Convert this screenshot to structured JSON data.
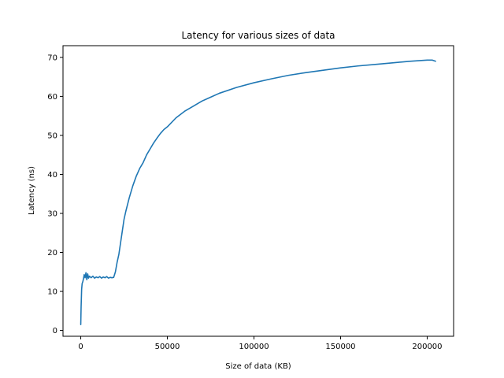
{
  "chart_data": {
    "type": "line",
    "title": "Latency for various sizes of data",
    "xlabel": "Size of data (KB)",
    "ylabel": "Latency (ns)",
    "xlim": [
      -10250,
      215250
    ],
    "ylim": [
      -1.5,
      73.0
    ],
    "xticks": [
      0,
      50000,
      100000,
      150000,
      200000
    ],
    "yticks": [
      0,
      10,
      20,
      30,
      40,
      50,
      60,
      70
    ],
    "grid": false,
    "legend": "none",
    "series": [
      {
        "color": "#1f77b4",
        "x": [
          0,
          200,
          500,
          800,
          1200,
          1600,
          2000,
          2500,
          3000,
          3500,
          4000,
          4500,
          5000,
          6000,
          7000,
          8000,
          9000,
          10000,
          11000,
          12000,
          13000,
          14000,
          15000,
          16000,
          17000,
          18000,
          19000,
          19500,
          20000,
          21000,
          22000,
          23000,
          24000,
          25000,
          26000,
          28000,
          30000,
          32000,
          34000,
          36000,
          38000,
          40000,
          42000,
          44000,
          46000,
          48000,
          50000,
          55000,
          60000,
          65000,
          70000,
          75000,
          80000,
          90000,
          100000,
          110000,
          120000,
          130000,
          140000,
          150000,
          160000,
          170000,
          180000,
          190000,
          200000,
          203000,
          204800
        ],
        "values": [
          1.5,
          6,
          10.5,
          12,
          12.5,
          13.3,
          14.3,
          13.5,
          14.8,
          13.0,
          14.5,
          13.4,
          13.9,
          13.5,
          13.9,
          13.4,
          13.7,
          13.5,
          13.8,
          13.4,
          13.7,
          13.5,
          13.8,
          13.4,
          13.6,
          13.5,
          13.6,
          14.3,
          15.0,
          17.5,
          19.5,
          22.5,
          25.5,
          28.5,
          30.5,
          34.0,
          37.0,
          39.5,
          41.5,
          43.0,
          45.0,
          46.5,
          48.0,
          49.3,
          50.5,
          51.5,
          52.2,
          54.5,
          56.2,
          57.5,
          58.8,
          59.8,
          60.8,
          62.3,
          63.5,
          64.5,
          65.4,
          66.1,
          66.7,
          67.3,
          67.8,
          68.2,
          68.6,
          69.0,
          69.3,
          69.3,
          69.0
        ]
      }
    ]
  }
}
